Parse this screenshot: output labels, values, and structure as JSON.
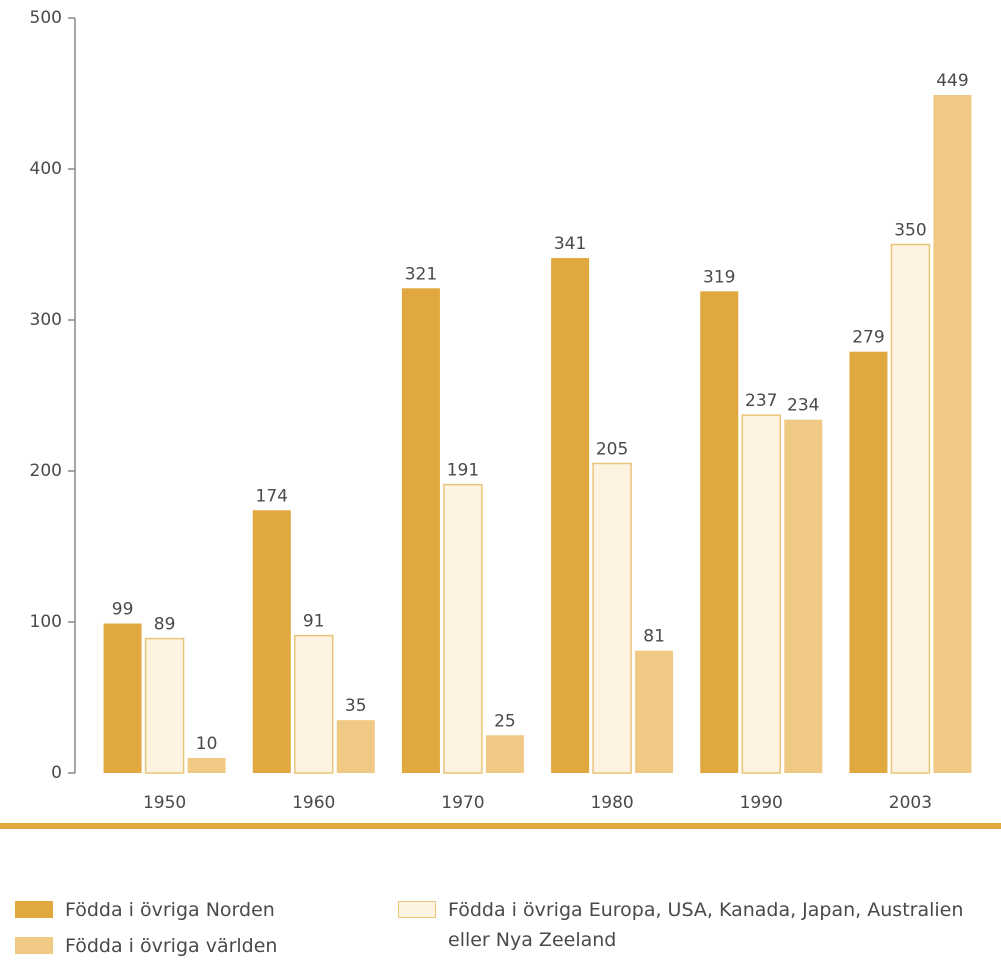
{
  "chart_data": {
    "type": "bar",
    "categories": [
      "1950",
      "1960",
      "1970",
      "1980",
      "1990",
      "2003"
    ],
    "series": [
      {
        "name": "Födda i övriga Norden",
        "color": "#e0a83f",
        "values": [
          99,
          174,
          321,
          341,
          319,
          279
        ]
      },
      {
        "name": "Födda i övriga Europa, USA, Kanada, Japan, Australien eller Nya Zeeland",
        "color": "#fdf3e0",
        "values": [
          89,
          91,
          191,
          205,
          237,
          350
        ]
      },
      {
        "name": "Födda i övriga världen",
        "color": "#f0c985",
        "values": [
          10,
          35,
          25,
          81,
          234,
          449
        ]
      }
    ],
    "ylim": [
      0,
      500
    ],
    "yticks": [
      0,
      100,
      200,
      300,
      400,
      500
    ]
  }
}
